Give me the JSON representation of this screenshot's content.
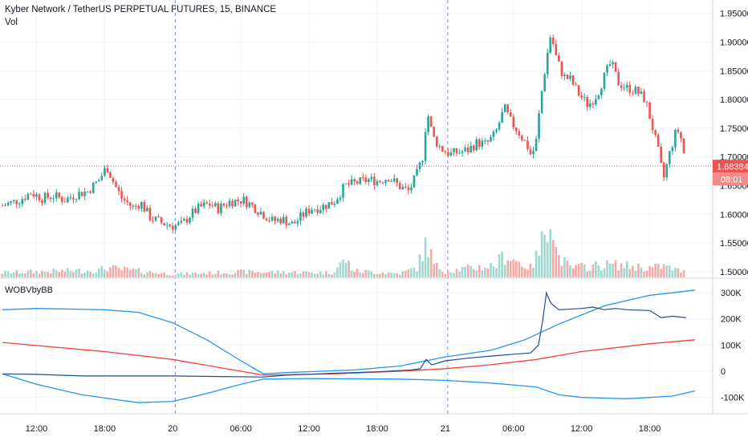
{
  "header": {
    "title": "Kyber Network / TetherUS PERPETUAL FUTURES, 15, BINANCE",
    "volume_label": "Vol"
  },
  "indicator": {
    "name": "WOBVbyBB"
  },
  "colors": {
    "up": "#26a69a",
    "down": "#ef5350",
    "up_vol": "#9fd8cf",
    "down_vol": "#f7a9a7",
    "band": "#2196f3",
    "basis": "#f44336",
    "obv": "#1f4e8c",
    "grid": "#f0f3fa",
    "session": "#6d8fd6",
    "price_line": "#ef5350"
  },
  "price_axis": {
    "ticks": [
      "1.95000",
      "1.90000",
      "1.85000",
      "1.80000",
      "1.75000",
      "1.70000",
      "1.65000",
      "1.60000",
      "1.55000",
      "1.50000"
    ],
    "tick_values": [
      1.95,
      1.9,
      1.85,
      1.8,
      1.75,
      1.7,
      1.65,
      1.6,
      1.55,
      1.5
    ],
    "last_price": "1.68384",
    "last_price_value": 1.68384,
    "countdown": "08:01"
  },
  "indicator_axis": {
    "ticks": [
      "300K",
      "200K",
      "100K",
      "0",
      "-100K"
    ],
    "tick_values": [
      300000,
      200000,
      100000,
      0,
      -100000
    ]
  },
  "time_axis": {
    "ticks": [
      "12:00",
      "18:00",
      "20",
      "06:00",
      "12:00",
      "18:00",
      "21",
      "06:00",
      "12:00",
      "18:00"
    ],
    "tick_hours": [
      12,
      18,
      24,
      30,
      36,
      42,
      48,
      54,
      60,
      66
    ],
    "session_breaks": [
      24,
      48
    ]
  },
  "chart_data": [
    {
      "type": "candlestick",
      "interval": "15",
      "x_start_hour": 9,
      "y_range": [
        1.49,
        1.965
      ],
      "close_anchors": [
        [
          9.0,
          1.615
        ],
        [
          10.5,
          1.625
        ],
        [
          11.5,
          1.638
        ],
        [
          12.5,
          1.628
        ],
        [
          13.5,
          1.632
        ],
        [
          14.5,
          1.625
        ],
        [
          15.5,
          1.635
        ],
        [
          16.5,
          1.64
        ],
        [
          17.5,
          1.66
        ],
        [
          18.2,
          1.683
        ],
        [
          18.8,
          1.655
        ],
        [
          19.5,
          1.628
        ],
        [
          20.5,
          1.612
        ],
        [
          21.2,
          1.62
        ],
        [
          22.0,
          1.595
        ],
        [
          23.0,
          1.585
        ],
        [
          24.0,
          1.58
        ],
        [
          24.8,
          1.582
        ],
        [
          25.6,
          1.6
        ],
        [
          26.4,
          1.612
        ],
        [
          27.2,
          1.618
        ],
        [
          28.0,
          1.61
        ],
        [
          29.0,
          1.622
        ],
        [
          30.2,
          1.625
        ],
        [
          31.0,
          1.615
        ],
        [
          32.0,
          1.6
        ],
        [
          32.8,
          1.588
        ],
        [
          33.6,
          1.592
        ],
        [
          34.6,
          1.582
        ],
        [
          35.4,
          1.598
        ],
        [
          36.2,
          1.61
        ],
        [
          37.0,
          1.612
        ],
        [
          38.2,
          1.622
        ],
        [
          39.2,
          1.65
        ],
        [
          40.2,
          1.655
        ],
        [
          41.2,
          1.66
        ],
        [
          42.2,
          1.658
        ],
        [
          43.0,
          1.665
        ],
        [
          44.0,
          1.648
        ],
        [
          44.8,
          1.64
        ],
        [
          45.5,
          1.67
        ],
        [
          46.0,
          1.7
        ],
        [
          46.4,
          1.78
        ],
        [
          46.9,
          1.735
        ],
        [
          47.6,
          1.715
        ],
        [
          48.4,
          1.705
        ],
        [
          49.2,
          1.708
        ],
        [
          50.0,
          1.712
        ],
        [
          50.8,
          1.725
        ],
        [
          51.6,
          1.722
        ],
        [
          52.4,
          1.74
        ],
        [
          53.2,
          1.785
        ],
        [
          53.8,
          1.76
        ],
        [
          54.4,
          1.745
        ],
        [
          55.2,
          1.72
        ],
        [
          55.6,
          1.7
        ],
        [
          56.0,
          1.728
        ],
        [
          56.4,
          1.8
        ],
        [
          56.9,
          1.87
        ],
        [
          57.3,
          1.915
        ],
        [
          57.8,
          1.87
        ],
        [
          58.4,
          1.84
        ],
        [
          59.0,
          1.835
        ],
        [
          59.8,
          1.808
        ],
        [
          60.6,
          1.79
        ],
        [
          61.4,
          1.81
        ],
        [
          62.0,
          1.84
        ],
        [
          62.6,
          1.865
        ],
        [
          63.2,
          1.83
        ],
        [
          64.0,
          1.82
        ],
        [
          64.8,
          1.815
        ],
        [
          65.6,
          1.8
        ],
        [
          66.2,
          1.755
        ],
        [
          66.8,
          1.705
        ],
        [
          67.2,
          1.66
        ],
        [
          67.8,
          1.71
        ],
        [
          68.4,
          1.75
        ],
        [
          68.8,
          1.73
        ],
        [
          69.2,
          1.684
        ]
      ],
      "volume_anchors": [
        [
          9.0,
          6000
        ],
        [
          17.5,
          9000
        ],
        [
          18.2,
          12000
        ],
        [
          24.0,
          4000
        ],
        [
          30.0,
          7000
        ],
        [
          38.0,
          6000
        ],
        [
          39.2,
          22000
        ],
        [
          40.0,
          8000
        ],
        [
          44.0,
          5000
        ],
        [
          45.5,
          12000
        ],
        [
          46.0,
          30000
        ],
        [
          46.4,
          45000
        ],
        [
          47.0,
          15000
        ],
        [
          48.0,
          8000
        ],
        [
          52.4,
          15000
        ],
        [
          53.2,
          28000
        ],
        [
          55.5,
          12000
        ],
        [
          56.4,
          35000
        ],
        [
          56.9,
          75000
        ],
        [
          57.3,
          90000
        ],
        [
          57.8,
          28000
        ],
        [
          59.0,
          12000
        ],
        [
          62.6,
          16000
        ],
        [
          66.2,
          12000
        ],
        [
          67.2,
          14000
        ],
        [
          69.2,
          6000
        ]
      ]
    },
    {
      "type": "line",
      "title": "WOBVbyBB",
      "x_start_hour": 9,
      "y_range": [
        -150000,
        340000
      ],
      "series": [
        {
          "role": "upper",
          "points": [
            [
              9,
              235000
            ],
            [
              12,
              240000
            ],
            [
              18,
              235000
            ],
            [
              21,
              225000
            ],
            [
              24,
              185000
            ],
            [
              27,
              120000
            ],
            [
              30,
              40000
            ],
            [
              32,
              -10000
            ],
            [
              34,
              -5000
            ],
            [
              40,
              5000
            ],
            [
              44,
              20000
            ],
            [
              48,
              55000
            ],
            [
              52,
              80000
            ],
            [
              55,
              120000
            ],
            [
              58,
              180000
            ],
            [
              62,
              250000
            ],
            [
              66,
              290000
            ],
            [
              70,
              310000
            ]
          ]
        },
        {
          "role": "basis",
          "points": [
            [
              9,
              110000
            ],
            [
              18,
              75000
            ],
            [
              24,
              45000
            ],
            [
              28,
              15000
            ],
            [
              32,
              -15000
            ],
            [
              38,
              -10000
            ],
            [
              44,
              0
            ],
            [
              48,
              10000
            ],
            [
              52,
              25000
            ],
            [
              56,
              45000
            ],
            [
              60,
              75000
            ],
            [
              66,
              105000
            ],
            [
              70,
              120000
            ]
          ]
        },
        {
          "role": "lower",
          "points": [
            [
              9,
              -10000
            ],
            [
              12,
              -50000
            ],
            [
              16,
              -90000
            ],
            [
              21,
              -120000
            ],
            [
              24,
              -115000
            ],
            [
              27,
              -85000
            ],
            [
              30,
              -50000
            ],
            [
              32,
              -30000
            ],
            [
              36,
              -28000
            ],
            [
              44,
              -30000
            ],
            [
              48,
              -35000
            ],
            [
              52,
              -45000
            ],
            [
              56,
              -60000
            ],
            [
              58,
              -90000
            ],
            [
              60,
              -100000
            ],
            [
              64,
              -105000
            ],
            [
              68,
              -95000
            ],
            [
              70,
              -75000
            ]
          ]
        },
        {
          "role": "obv",
          "points": [
            [
              9,
              -10000
            ],
            [
              12,
              -12000
            ],
            [
              16,
              -18000
            ],
            [
              20,
              -18000
            ],
            [
              24,
              -18000
            ],
            [
              28,
              -20000
            ],
            [
              32,
              -22000
            ],
            [
              34,
              -15000
            ],
            [
              38,
              -8000
            ],
            [
              42,
              -2000
            ],
            [
              45,
              5000
            ],
            [
              45.8,
              10000
            ],
            [
              46.3,
              45000
            ],
            [
              46.8,
              25000
            ],
            [
              48,
              40000
            ],
            [
              50,
              50000
            ],
            [
              52,
              58000
            ],
            [
              54,
              65000
            ],
            [
              55.5,
              70000
            ],
            [
              56.2,
              100000
            ],
            [
              56.6,
              200000
            ],
            [
              56.9,
              300000
            ],
            [
              57.3,
              260000
            ],
            [
              58,
              235000
            ],
            [
              60,
              240000
            ],
            [
              61,
              245000
            ],
            [
              62,
              235000
            ],
            [
              63,
              240000
            ],
            [
              64,
              235000
            ],
            [
              66,
              232000
            ],
            [
              67,
              205000
            ],
            [
              68,
              210000
            ],
            [
              69.2,
              205000
            ]
          ]
        }
      ]
    }
  ]
}
